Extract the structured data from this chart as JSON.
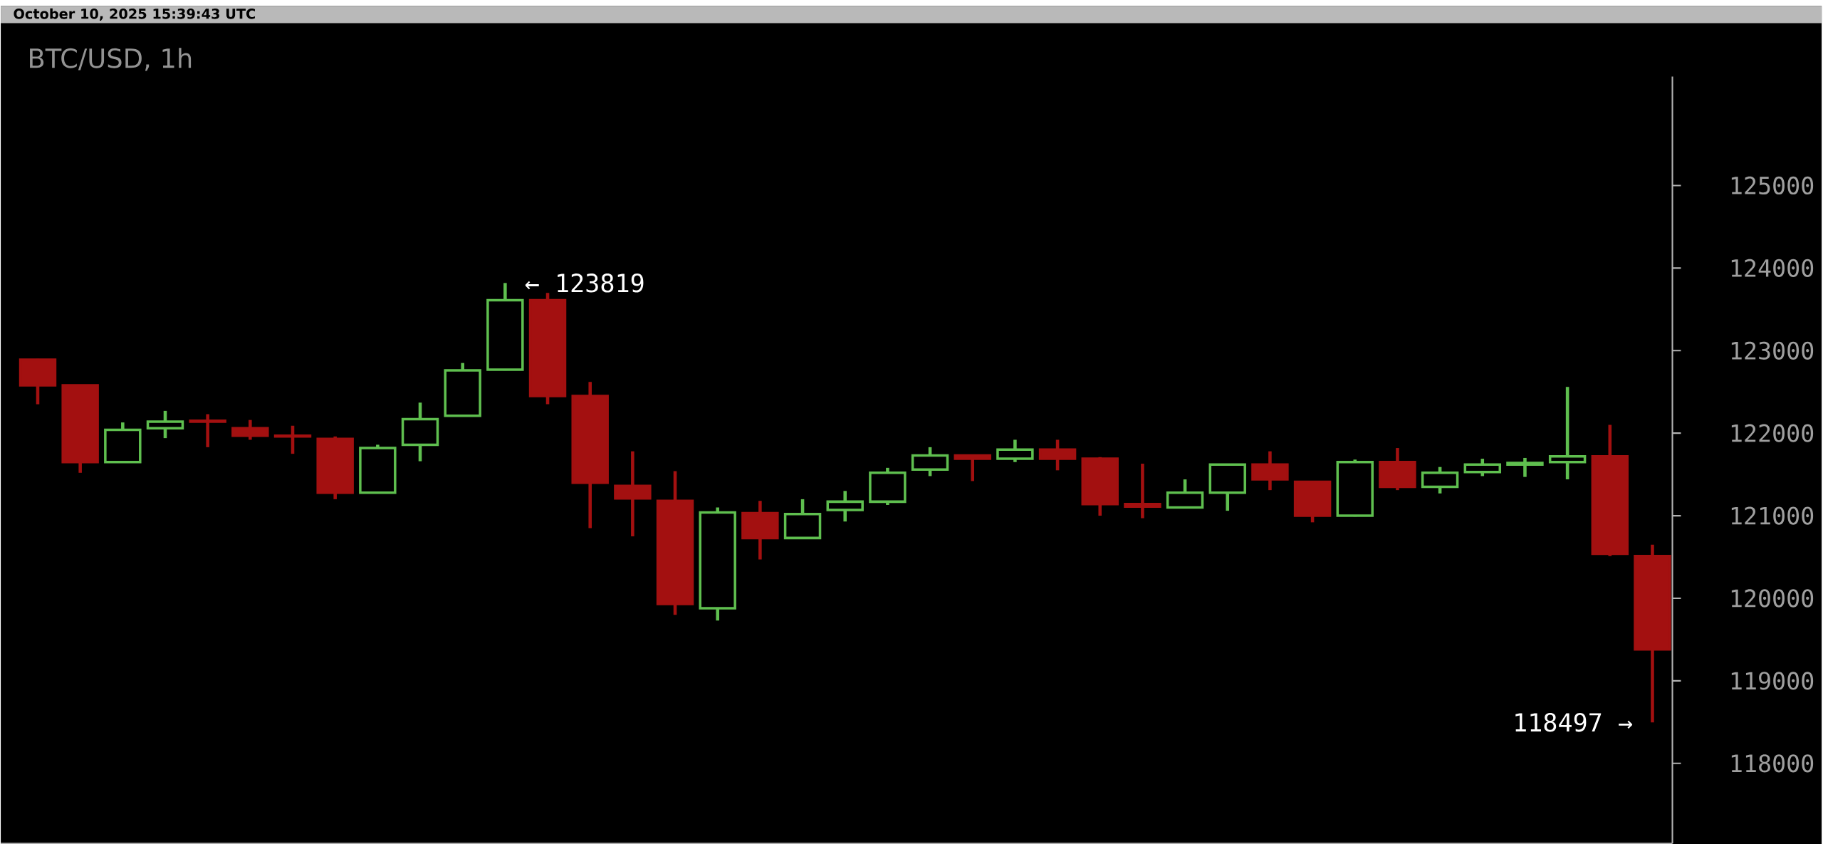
{
  "chart_data": {
    "type": "candlestick",
    "title": "BTC/USD, 1h",
    "annotations": [
      "October 10, 2025 15:39:43 UTC",
      "← 123819",
      "118497 →"
    ],
    "categories": [
      null,
      null,
      null,
      null,
      null,
      null,
      null,
      null,
      null,
      null,
      null,
      null,
      null,
      null,
      null,
      null,
      null,
      null,
      null,
      null,
      null,
      null,
      null,
      null,
      null,
      null,
      null,
      null,
      null,
      null,
      null,
      null,
      null,
      null,
      null,
      null,
      null,
      null,
      null
    ],
    "ohlc": [
      [
        122890,
        122900,
        122350,
        122580
      ],
      [
        122580,
        122580,
        121520,
        121650
      ],
      [
        121650,
        122130,
        121650,
        122040
      ],
      [
        122060,
        122270,
        121940,
        122140
      ],
      [
        122150,
        122230,
        121830,
        122140
      ],
      [
        122060,
        122160,
        121920,
        121970
      ],
      [
        121970,
        122090,
        121750,
        121960
      ],
      [
        121930,
        121960,
        121200,
        121280
      ],
      [
        121280,
        121860,
        121280,
        121820
      ],
      [
        121860,
        122370,
        121660,
        122170
      ],
      [
        122210,
        122850,
        122210,
        122760
      ],
      [
        122770,
        123819,
        122760,
        123610
      ],
      [
        123610,
        123700,
        122350,
        122450
      ],
      [
        122450,
        122620,
        120850,
        121400
      ],
      [
        121360,
        121780,
        120750,
        121210
      ],
      [
        121180,
        121540,
        119800,
        119930
      ],
      [
        119880,
        121100,
        119730,
        121040
      ],
      [
        121030,
        121180,
        120470,
        120730
      ],
      [
        120730,
        121200,
        120730,
        121020
      ],
      [
        121070,
        121300,
        120930,
        121170
      ],
      [
        121170,
        121580,
        121130,
        121520
      ],
      [
        121560,
        121830,
        121480,
        121730
      ],
      [
        121730,
        121740,
        121420,
        121690
      ],
      [
        121690,
        121920,
        121650,
        121800
      ],
      [
        121800,
        121920,
        121550,
        121690
      ],
      [
        121690,
        121710,
        121000,
        121140
      ],
      [
        121140,
        121630,
        120970,
        121110
      ],
      [
        121100,
        121440,
        121100,
        121280
      ],
      [
        121280,
        121620,
        121060,
        121620
      ],
      [
        121620,
        121780,
        121310,
        121440
      ],
      [
        121410,
        121410,
        120920,
        121000
      ],
      [
        121000,
        121680,
        120990,
        121650
      ],
      [
        121650,
        121820,
        121310,
        121350
      ],
      [
        121350,
        121590,
        121270,
        121520
      ],
      [
        121530,
        121690,
        121480,
        121620
      ],
      [
        121620,
        121700,
        121470,
        121640
      ],
      [
        121650,
        122560,
        121440,
        121720
      ],
      [
        121720,
        122100,
        120510,
        120540
      ],
      [
        120510,
        120650,
        118497,
        119380
      ]
    ],
    "colors": [
      "#a31010",
      "#a31010",
      "#5fbf4f",
      "#5fbf4f",
      "#a31010",
      "#a31010",
      "#a31010",
      "#a31010",
      "#5fbf4f",
      "#5fbf4f",
      "#5fbf4f",
      "#5fbf4f",
      "#a31010",
      "#a31010",
      "#a31010",
      "#a31010",
      "#5fbf4f",
      "#a31010",
      "#5fbf4f",
      "#5fbf4f",
      "#5fbf4f",
      "#5fbf4f",
      "#a31010",
      "#5fbf4f",
      "#a31010",
      "#a31010",
      "#a31010",
      "#5fbf4f",
      "#5fbf4f",
      "#a31010",
      "#a31010",
      "#5fbf4f",
      "#a31010",
      "#5fbf4f",
      "#5fbf4f",
      "#5fbf4f",
      "#5fbf4f",
      "#a31010",
      "#a31010"
    ],
    "ylim": [
      117030,
      126320
    ],
    "yticks": [
      118000,
      119000,
      120000,
      121000,
      122000,
      123000,
      124000,
      125000
    ],
    "grid": false
  }
}
